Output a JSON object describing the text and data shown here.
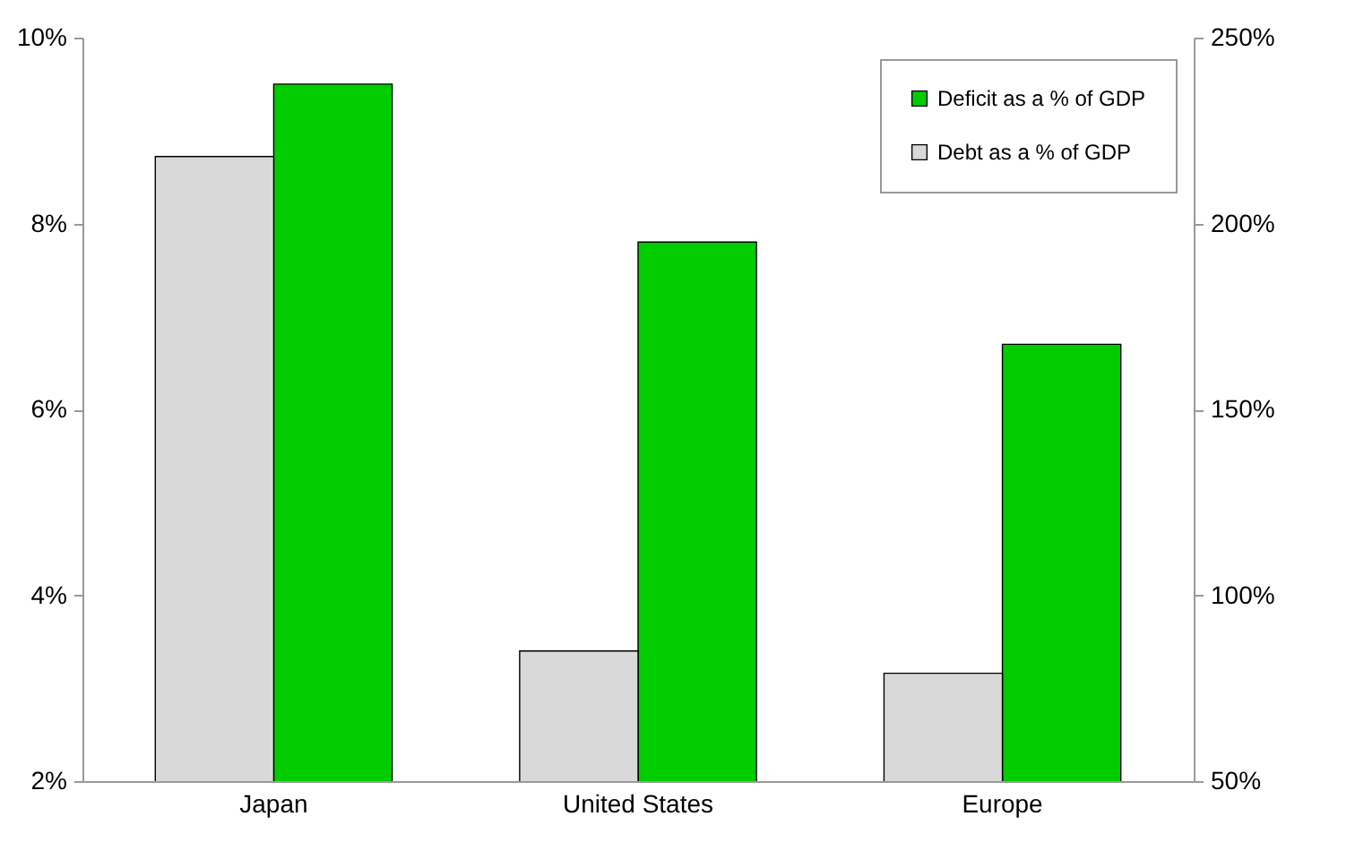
{
  "chart_data": {
    "type": "bar",
    "categories": [
      "Japan",
      "United States",
      "Europe"
    ],
    "series": [
      {
        "name": "Deficit as a % of GDP",
        "color": "#00cc00",
        "values": [
          9.5,
          7.8,
          6.7
        ]
      },
      {
        "name": "Debt as a % of GDP",
        "color": "#d9d9d9",
        "values": [
          218,
          85,
          79
        ],
        "axis": "y2"
      }
    ],
    "ylim": [
      2,
      10
    ],
    "yticks": [
      {
        "value": 2,
        "label": "2%"
      },
      {
        "value": 4,
        "label": "4%"
      },
      {
        "value": 6,
        "label": "6%"
      },
      {
        "value": 8,
        "label": "8%"
      },
      {
        "value": 10,
        "label": "10%"
      }
    ],
    "y2lim": [
      50,
      250
    ],
    "y2ticks": [
      {
        "value": 50,
        "label": "50%"
      },
      {
        "value": 100,
        "label": "100%"
      },
      {
        "value": 150,
        "label": "150%"
      },
      {
        "value": 200,
        "label": "200%"
      },
      {
        "value": 250,
        "label": "250%"
      }
    ],
    "grid": false,
    "legend": "top right"
  }
}
